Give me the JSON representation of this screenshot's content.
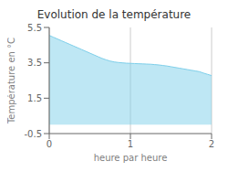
{
  "chart_data": {
    "type": "area",
    "title": "Evolution de la température",
    "xlabel": "heure par heure",
    "ylabel": "Température en °C",
    "xlim": [
      0,
      2
    ],
    "ylim": [
      -0.5,
      5.5
    ],
    "xticks": [
      0,
      1,
      2
    ],
    "yticks": [
      -0.5,
      1.5,
      3.5,
      5.5
    ],
    "x": [
      0,
      0.05,
      0.1,
      0.15,
      0.2,
      0.25,
      0.3,
      0.35,
      0.4,
      0.45,
      0.5,
      0.55,
      0.6,
      0.65,
      0.7,
      0.75,
      0.8,
      0.85,
      0.9,
      0.95,
      1.0,
      1.05,
      1.1,
      1.15,
      1.2,
      1.25,
      1.3,
      1.35,
      1.4,
      1.45,
      1.5,
      1.55,
      1.6,
      1.65,
      1.7,
      1.75,
      1.8,
      1.85,
      1.9,
      1.95,
      2.0
    ],
    "values": [
      5.05,
      4.95,
      4.85,
      4.75,
      4.65,
      4.55,
      4.45,
      4.35,
      4.25,
      4.15,
      4.05,
      3.95,
      3.85,
      3.75,
      3.67,
      3.6,
      3.55,
      3.52,
      3.5,
      3.48,
      3.47,
      3.46,
      3.45,
      3.44,
      3.43,
      3.42,
      3.4,
      3.38,
      3.35,
      3.32,
      3.28,
      3.24,
      3.2,
      3.16,
      3.12,
      3.08,
      3.04,
      3.0,
      2.92,
      2.85,
      2.78
    ],
    "baseline": 0,
    "color": "#7ecfea",
    "grid": "x"
  }
}
